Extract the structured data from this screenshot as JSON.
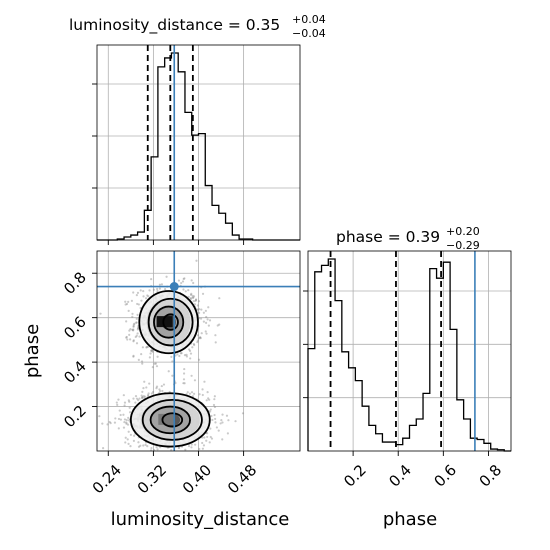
{
  "chart_data": {
    "type": "corner",
    "parameters": [
      {
        "name": "luminosity_distance",
        "title_prefix": "luminosity_distance = 0.35",
        "title_plus": "+0.04",
        "title_minus": "−0.04",
        "median": 0.35,
        "quantiles": [
          0.31,
          0.35,
          0.39
        ],
        "truth": 0.357,
        "range": [
          0.22,
          0.58
        ],
        "ticks": [
          0.24,
          0.32,
          0.4,
          0.48
        ],
        "tick_labels": [
          "0.24",
          "0.32",
          "0.40",
          "0.48"
        ],
        "axis_label": "luminosity_distance",
        "histogram": {
          "bin_edges": [
            0.22,
            0.232,
            0.244,
            0.256,
            0.268,
            0.28,
            0.292,
            0.304,
            0.316,
            0.328,
            0.34,
            0.352,
            0.364,
            0.376,
            0.388,
            0.4,
            0.412,
            0.424,
            0.436,
            0.448,
            0.46,
            0.472,
            0.484,
            0.496,
            0.508,
            0.52,
            0.532,
            0.544,
            0.556,
            0.568,
            0.58
          ],
          "counts": [
            0,
            0,
            0,
            2,
            6,
            10,
            16,
            60,
            168,
            350,
            368,
            378,
            340,
            258,
            212,
            215,
            110,
            70,
            54,
            34,
            10,
            2,
            2,
            0,
            0,
            0,
            0,
            0,
            0,
            0
          ]
        }
      },
      {
        "name": "phase",
        "title_prefix": "phase = 0.39",
        "title_plus": "+0.20",
        "title_minus": "−0.29",
        "median": 0.39,
        "quantiles": [
          0.1,
          0.39,
          0.59
        ],
        "truth": 0.74,
        "range": [
          0.0,
          0.9
        ],
        "ticks": [
          0.2,
          0.4,
          0.6,
          0.8
        ],
        "tick_labels": [
          "0.2",
          "0.4",
          "0.6",
          "0.8"
        ],
        "axis_label": "phase",
        "histogram": {
          "bin_edges": [
            0.0,
            0.03,
            0.06,
            0.09,
            0.12,
            0.15,
            0.18,
            0.21,
            0.24,
            0.27,
            0.3,
            0.33,
            0.36,
            0.39,
            0.42,
            0.45,
            0.48,
            0.51,
            0.54,
            0.57,
            0.6,
            0.63,
            0.66,
            0.69,
            0.72,
            0.75,
            0.78,
            0.81,
            0.84,
            0.87,
            0.9
          ],
          "counts": [
            160,
            280,
            290,
            300,
            235,
            155,
            130,
            110,
            70,
            40,
            27,
            14,
            14,
            10,
            20,
            40,
            50,
            90,
            285,
            270,
            295,
            190,
            80,
            50,
            20,
            18,
            12,
            3,
            2,
            0
          ]
        }
      }
    ],
    "joint": {
      "x_param": "luminosity_distance",
      "y_param": "phase",
      "truth_point": [
        0.357,
        0.74
      ],
      "modes": [
        {
          "center": [
            0.347,
            0.58
          ],
          "sd": [
            0.026,
            0.07
          ]
        },
        {
          "center": [
            0.35,
            0.14
          ],
          "sd": [
            0.035,
            0.06
          ]
        }
      ],
      "contour_levels": [
        "0.5-sigma",
        "1-sigma",
        "1.5-sigma",
        "2-sigma"
      ]
    },
    "colors": {
      "truth": "#3b7fb8",
      "histogram": "#000000",
      "grid": "#b0b0b0",
      "scatter": "#8a8a8a"
    },
    "grid": true
  }
}
